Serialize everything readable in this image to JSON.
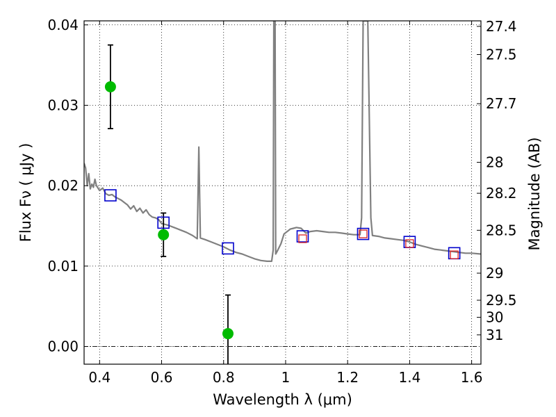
{
  "chart_data": {
    "type": "scatter",
    "x_axis": {
      "label": "Wavelength  λ (μm)",
      "range": [
        0.35,
        1.63
      ],
      "ticks": [
        0.4,
        0.6,
        0.8,
        1.0,
        1.2,
        1.4,
        1.6
      ],
      "tick_labels": [
        "0.4",
        "0.6",
        "0.8",
        "1",
        "1.2",
        "1.4",
        "1.6"
      ]
    },
    "y_axis": {
      "label": "Flux  Fν  ( μJy )",
      "range": [
        -0.0022,
        0.0405
      ],
      "ticks": [
        0.0,
        0.01,
        0.02,
        0.03,
        0.04
      ],
      "tick_labels": [
        "0.00",
        "0.01",
        "0.02",
        "0.03",
        "0.04"
      ]
    },
    "y2_axis": {
      "label": "Magnitude (AB)",
      "scale": "AB magnitude of flux (μJy)",
      "ticks": [
        27.4,
        27.5,
        27.7,
        28,
        28.2,
        28.5,
        29,
        29.5,
        30,
        31
      ],
      "tick_labels": [
        "27.4",
        "27.5",
        "27.7",
        "28",
        "28.2",
        "28.5",
        "29",
        "29.5",
        "30",
        "31"
      ]
    },
    "grid": true,
    "zero_line": true,
    "series": [
      {
        "kind": "line",
        "color": "#808080",
        "points": [
          [
            0.35,
            0.0228
          ],
          [
            0.355,
            0.0222
          ],
          [
            0.36,
            0.02
          ],
          [
            0.365,
            0.0215
          ],
          [
            0.37,
            0.0196
          ],
          [
            0.375,
            0.0202
          ],
          [
            0.38,
            0.0198
          ],
          [
            0.385,
            0.0208
          ],
          [
            0.39,
            0.02
          ],
          [
            0.4,
            0.0194
          ],
          [
            0.41,
            0.0197
          ],
          [
            0.42,
            0.019
          ],
          [
            0.43,
            0.0188
          ],
          [
            0.44,
            0.0189
          ],
          [
            0.45,
            0.0186
          ],
          [
            0.46,
            0.0184
          ],
          [
            0.47,
            0.0182
          ],
          [
            0.48,
            0.0179
          ],
          [
            0.49,
            0.0176
          ],
          [
            0.5,
            0.0171
          ],
          [
            0.51,
            0.0175
          ],
          [
            0.52,
            0.0168
          ],
          [
            0.53,
            0.0172
          ],
          [
            0.54,
            0.0166
          ],
          [
            0.55,
            0.017
          ],
          [
            0.56,
            0.0164
          ],
          [
            0.57,
            0.0161
          ],
          [
            0.58,
            0.016
          ],
          [
            0.59,
            0.0158
          ],
          [
            0.6,
            0.0153
          ],
          [
            0.62,
            0.0151
          ],
          [
            0.64,
            0.0148
          ],
          [
            0.66,
            0.0145
          ],
          [
            0.68,
            0.0142
          ],
          [
            0.7,
            0.0138
          ],
          [
            0.715,
            0.0134
          ],
          [
            0.72,
            0.0248
          ],
          [
            0.725,
            0.0135
          ],
          [
            0.74,
            0.0133
          ],
          [
            0.76,
            0.013
          ],
          [
            0.78,
            0.0127
          ],
          [
            0.8,
            0.0124
          ],
          [
            0.82,
            0.012
          ],
          [
            0.84,
            0.0117
          ],
          [
            0.86,
            0.0115
          ],
          [
            0.88,
            0.0112
          ],
          [
            0.9,
            0.0109
          ],
          [
            0.92,
            0.0107
          ],
          [
            0.94,
            0.0106
          ],
          [
            0.955,
            0.0106
          ],
          [
            0.96,
            0.012
          ],
          [
            0.962,
            0.0405
          ],
          [
            0.966,
            0.0405
          ],
          [
            0.968,
            0.0115
          ],
          [
            0.975,
            0.012
          ],
          [
            0.985,
            0.0128
          ],
          [
            0.995,
            0.014
          ],
          [
            1.005,
            0.0143
          ],
          [
            1.015,
            0.0146
          ],
          [
            1.025,
            0.0147
          ],
          [
            1.035,
            0.0148
          ],
          [
            1.05,
            0.0147
          ],
          [
            1.065,
            0.0141
          ],
          [
            1.08,
            0.0143
          ],
          [
            1.1,
            0.0144
          ],
          [
            1.12,
            0.0143
          ],
          [
            1.14,
            0.0142
          ],
          [
            1.16,
            0.0142
          ],
          [
            1.18,
            0.0141
          ],
          [
            1.2,
            0.014
          ],
          [
            1.22,
            0.0139
          ],
          [
            1.24,
            0.0139
          ],
          [
            1.245,
            0.016
          ],
          [
            1.25,
            0.0405
          ],
          [
            1.265,
            0.0405
          ],
          [
            1.275,
            0.016
          ],
          [
            1.28,
            0.0138
          ],
          [
            1.3,
            0.0137
          ],
          [
            1.32,
            0.0135
          ],
          [
            1.34,
            0.0134
          ],
          [
            1.36,
            0.0133
          ],
          [
            1.38,
            0.0132
          ],
          [
            1.4,
            0.013
          ],
          [
            1.42,
            0.0127
          ],
          [
            1.44,
            0.0125
          ],
          [
            1.46,
            0.0123
          ],
          [
            1.48,
            0.0121
          ],
          [
            1.5,
            0.012
          ],
          [
            1.52,
            0.0119
          ],
          [
            1.54,
            0.0118
          ],
          [
            1.56,
            0.0117
          ],
          [
            1.58,
            0.0116
          ],
          [
            1.6,
            0.0116
          ],
          [
            1.63,
            0.0115
          ]
        ]
      },
      {
        "kind": "scatter",
        "marker": "circle",
        "color": "#00bb00",
        "points": [
          {
            "x": 0.435,
            "y": 0.0323,
            "yerr": 0.0052
          },
          {
            "x": 0.606,
            "y": 0.0139,
            "yerr": 0.0027
          },
          {
            "x": 0.814,
            "y": 0.0016,
            "yerr": 0.0048
          }
        ]
      },
      {
        "kind": "scatter",
        "marker": "open-square",
        "color": "#0000cc",
        "points": [
          {
            "x": 0.435,
            "y": 0.0188
          },
          {
            "x": 0.606,
            "y": 0.0154
          },
          {
            "x": 0.814,
            "y": 0.0122
          },
          {
            "x": 1.055,
            "y": 0.0137
          },
          {
            "x": 1.25,
            "y": 0.014
          },
          {
            "x": 1.4,
            "y": 0.013
          },
          {
            "x": 1.544,
            "y": 0.0116
          }
        ]
      },
      {
        "kind": "scatter",
        "marker": "small-open-square",
        "color": "#dd2222",
        "points": [
          {
            "x": 1.055,
            "y": 0.0134
          },
          {
            "x": 1.25,
            "y": 0.014
          },
          {
            "x": 1.4,
            "y": 0.0128
          },
          {
            "x": 1.544,
            "y": 0.0114
          }
        ]
      }
    ]
  }
}
